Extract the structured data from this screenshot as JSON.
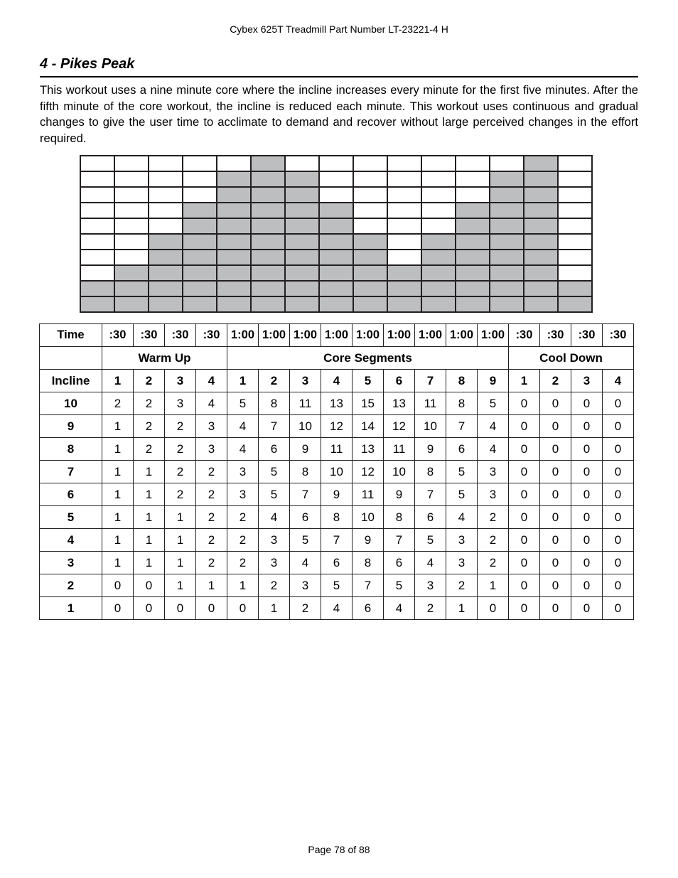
{
  "header": "Cybex 625T Treadmill Part Number LT-23221-4 H",
  "section_title": "4 - Pikes Peak",
  "description": "This workout uses a nine minute core where the incline increases every minute for the first five minutes. After the fifth minute of the core workout, the incline is reduced each minute. This workout uses continuous and gradual changes to give the user time to acclimate to demand and recover without large perceived changes in the effort required.",
  "profile": {
    "levels": 10,
    "column_heights": [
      2,
      3,
      5,
      7,
      9,
      10,
      9,
      7,
      5,
      3,
      5,
      7,
      9,
      10,
      2
    ],
    "fill_color": "#bcbec0"
  },
  "table": {
    "time_label": "Time",
    "times": [
      ":30",
      ":30",
      ":30",
      ":30",
      "1:00",
      "1:00",
      "1:00",
      "1:00",
      "1:00",
      "1:00",
      "1:00",
      "1:00",
      "1:00",
      ":30",
      ":30",
      ":30",
      ":30"
    ],
    "phases": [
      {
        "label": "Warm Up",
        "span": 4
      },
      {
        "label": "Core Segments",
        "span": 9
      },
      {
        "label": "Cool Down",
        "span": 4
      }
    ],
    "incline_label": "Incline",
    "segments": [
      "1",
      "2",
      "3",
      "4",
      "1",
      "2",
      "3",
      "4",
      "5",
      "6",
      "7",
      "8",
      "9",
      "1",
      "2",
      "3",
      "4"
    ],
    "rows": [
      {
        "level": "10",
        "values": [
          "2",
          "2",
          "3",
          "4",
          "5",
          "8",
          "11",
          "13",
          "15",
          "13",
          "11",
          "8",
          "5",
          "0",
          "0",
          "0",
          "0"
        ]
      },
      {
        "level": "9",
        "values": [
          "1",
          "2",
          "2",
          "3",
          "4",
          "7",
          "10",
          "12",
          "14",
          "12",
          "10",
          "7",
          "4",
          "0",
          "0",
          "0",
          "0"
        ]
      },
      {
        "level": "8",
        "values": [
          "1",
          "2",
          "2",
          "3",
          "4",
          "6",
          "9",
          "11",
          "13",
          "11",
          "9",
          "6",
          "4",
          "0",
          "0",
          "0",
          "0"
        ]
      },
      {
        "level": "7",
        "values": [
          "1",
          "1",
          "2",
          "2",
          "3",
          "5",
          "8",
          "10",
          "12",
          "10",
          "8",
          "5",
          "3",
          "0",
          "0",
          "0",
          "0"
        ]
      },
      {
        "level": "6",
        "values": [
          "1",
          "1",
          "2",
          "2",
          "3",
          "5",
          "7",
          "9",
          "11",
          "9",
          "7",
          "5",
          "3",
          "0",
          "0",
          "0",
          "0"
        ]
      },
      {
        "level": "5",
        "values": [
          "1",
          "1",
          "1",
          "2",
          "2",
          "4",
          "6",
          "8",
          "10",
          "8",
          "6",
          "4",
          "2",
          "0",
          "0",
          "0",
          "0"
        ]
      },
      {
        "level": "4",
        "values": [
          "1",
          "1",
          "1",
          "2",
          "2",
          "3",
          "5",
          "7",
          "9",
          "7",
          "5",
          "3",
          "2",
          "0",
          "0",
          "0",
          "0"
        ]
      },
      {
        "level": "3",
        "values": [
          "1",
          "1",
          "1",
          "2",
          "2",
          "3",
          "4",
          "6",
          "8",
          "6",
          "4",
          "3",
          "2",
          "0",
          "0",
          "0",
          "0"
        ]
      },
      {
        "level": "2",
        "values": [
          "0",
          "0",
          "1",
          "1",
          "1",
          "2",
          "3",
          "5",
          "7",
          "5",
          "3",
          "2",
          "1",
          "0",
          "0",
          "0",
          "0"
        ]
      },
      {
        "level": "1",
        "values": [
          "0",
          "0",
          "0",
          "0",
          "0",
          "1",
          "2",
          "4",
          "6",
          "4",
          "2",
          "1",
          "0",
          "0",
          "0",
          "0",
          "0"
        ]
      }
    ]
  },
  "footer": "Page 78 of 88"
}
